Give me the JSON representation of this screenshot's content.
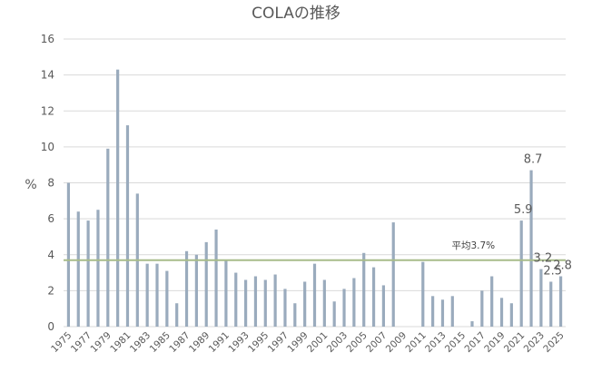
{
  "chart_data": {
    "type": "bar",
    "title": "COLAの推移",
    "ylabel": "%",
    "xlabel": "",
    "ylim": [
      0,
      16
    ],
    "yticks": [
      0,
      2,
      4,
      6,
      8,
      10,
      12,
      14,
      16
    ],
    "grid": true,
    "bar_color": "#9aabbd",
    "average_line_color": "#a8bc8a",
    "categories": [
      1975,
      1976,
      1977,
      1978,
      1979,
      1980,
      1981,
      1982,
      1983,
      1984,
      1985,
      1986,
      1987,
      1988,
      1989,
      1990,
      1991,
      1992,
      1993,
      1994,
      1995,
      1996,
      1997,
      1998,
      1999,
      2000,
      2001,
      2002,
      2003,
      2004,
      2005,
      2006,
      2007,
      2008,
      2009,
      2010,
      2011,
      2012,
      2013,
      2014,
      2015,
      2016,
      2017,
      2018,
      2019,
      2020,
      2021,
      2022,
      2023,
      2024,
      2025
    ],
    "x_tick_labels": [
      "1975",
      "1977",
      "1979",
      "1981",
      "1983",
      "1985",
      "1987",
      "1989",
      "1991",
      "1993",
      "1995",
      "1997",
      "1999",
      "2001",
      "2003",
      "2005",
      "2007",
      "2009",
      "2011",
      "2013",
      "2015",
      "2017",
      "2019",
      "2021",
      "2023",
      "2025"
    ],
    "values": [
      8.0,
      6.4,
      5.9,
      6.5,
      9.9,
      14.3,
      11.2,
      7.4,
      3.5,
      3.5,
      3.1,
      1.3,
      4.2,
      4.0,
      4.7,
      5.4,
      3.7,
      3.0,
      2.6,
      2.8,
      2.6,
      2.9,
      2.1,
      1.3,
      2.5,
      3.5,
      2.6,
      1.4,
      2.1,
      2.7,
      4.1,
      3.3,
      2.3,
      5.8,
      0,
      0,
      3.6,
      1.7,
      1.5,
      1.7,
      0,
      0.3,
      2.0,
      2.8,
      1.6,
      1.3,
      5.9,
      8.7,
      3.2,
      2.5,
      2.8
    ],
    "average": {
      "value": 3.7,
      "label": "平均3.7%"
    },
    "data_labels": [
      {
        "category": 2021,
        "text": "5.9"
      },
      {
        "category": 2022,
        "text": "8.7"
      },
      {
        "category": 2023,
        "text": "3.2"
      },
      {
        "category": 2024,
        "text": "2.5"
      },
      {
        "category": 2025,
        "text": "2.8"
      }
    ]
  }
}
